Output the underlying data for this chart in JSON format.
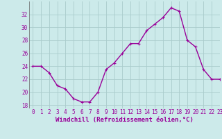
{
  "x": [
    0,
    1,
    2,
    3,
    4,
    5,
    6,
    7,
    8,
    9,
    10,
    11,
    12,
    13,
    14,
    15,
    16,
    17,
    18,
    19,
    20,
    21,
    22,
    23
  ],
  "y": [
    24,
    24,
    23,
    21,
    20.5,
    19,
    18.5,
    18.5,
    20,
    23.5,
    24.5,
    26,
    27.5,
    27.5,
    29.5,
    30.5,
    31.5,
    33,
    32.5,
    28,
    27,
    23.5,
    22,
    22
  ],
  "line_color": "#990099",
  "marker": "+",
  "bg_color": "#cceaea",
  "grid_color": "#aacccc",
  "xlabel": "Windchill (Refroidissement éolien,°C)",
  "xlabel_color": "#990099",
  "ylim": [
    17.5,
    34
  ],
  "xlim": [
    -0.5,
    23
  ],
  "yticks": [
    18,
    20,
    22,
    24,
    26,
    28,
    30,
    32
  ],
  "xticks": [
    0,
    1,
    2,
    3,
    4,
    5,
    6,
    7,
    8,
    9,
    10,
    11,
    12,
    13,
    14,
    15,
    16,
    17,
    18,
    19,
    20,
    21,
    22,
    23
  ],
  "tick_fontsize": 5.5,
  "xlabel_fontsize": 6.5,
  "line_width": 1.0,
  "marker_size": 3.5
}
